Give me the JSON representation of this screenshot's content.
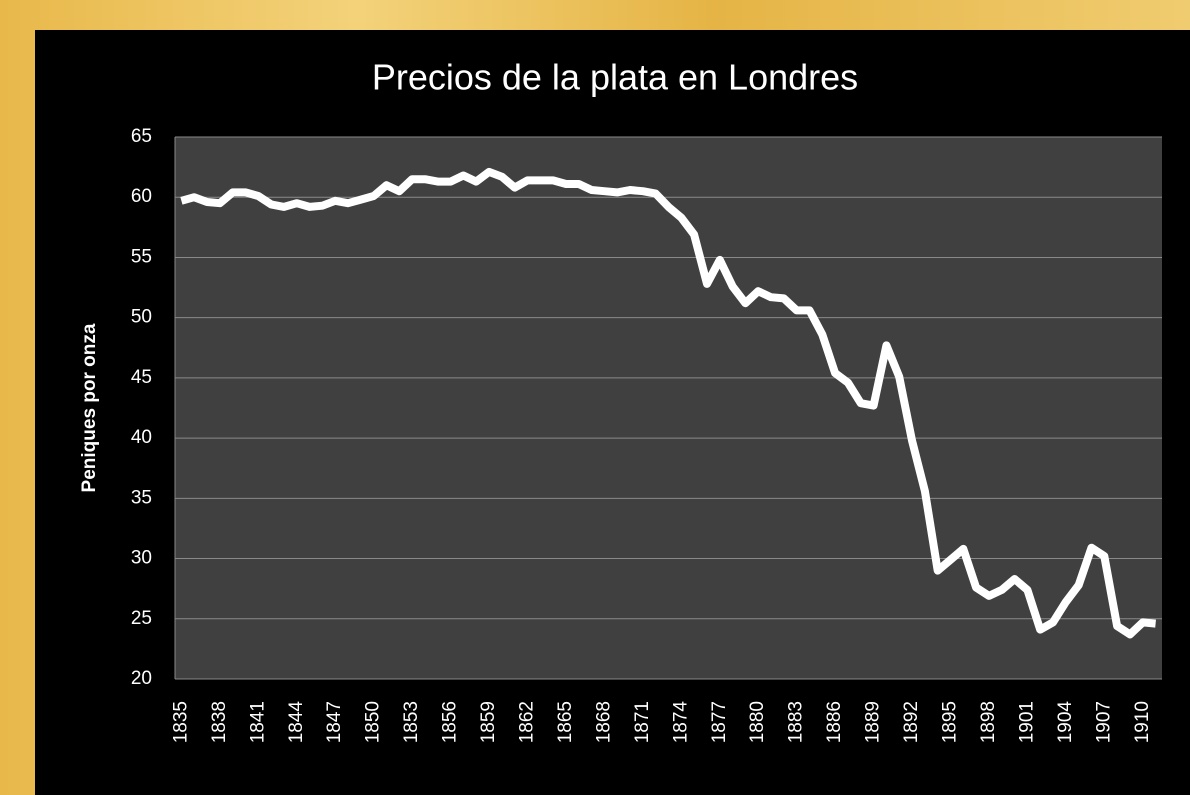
{
  "chart_data": {
    "type": "line",
    "title": "Precios de la plata en Londres",
    "y_label": "Peniques por onza",
    "categories": [
      "1835",
      null,
      null,
      "1838",
      null,
      null,
      "1841",
      null,
      null,
      "1844",
      null,
      null,
      "1847",
      null,
      null,
      "1850",
      null,
      null,
      "1853",
      null,
      null,
      "1856",
      null,
      null,
      "1859",
      null,
      null,
      "1862",
      null,
      null,
      "1865",
      null,
      null,
      "1868",
      null,
      null,
      "1871",
      null,
      null,
      "1874",
      null,
      null,
      "1877",
      null,
      null,
      "1880",
      null,
      null,
      "1883",
      null,
      null,
      "1886",
      null,
      null,
      "1889",
      null,
      null,
      "1892",
      null,
      null,
      "1895",
      null,
      null,
      "1898",
      null,
      null,
      "1901",
      null,
      null,
      "1904",
      null,
      null,
      "1907",
      null,
      null,
      "1910",
      null
    ],
    "values": [
      59.7,
      60.0,
      59.6,
      59.5,
      60.4,
      60.4,
      60.1,
      59.4,
      59.2,
      59.5,
      59.2,
      59.3,
      59.7,
      59.5,
      59.8,
      60.1,
      61.0,
      60.5,
      61.5,
      61.5,
      61.3,
      61.3,
      61.8,
      61.3,
      62.1,
      61.7,
      60.8,
      61.4,
      61.4,
      61.4,
      61.1,
      61.1,
      60.6,
      60.5,
      60.4,
      60.6,
      60.5,
      60.3,
      59.2,
      58.3,
      56.9,
      52.8,
      54.8,
      52.6,
      51.2,
      52.2,
      51.7,
      51.6,
      50.6,
      50.6,
      48.6,
      45.4,
      44.6,
      42.9,
      42.7,
      47.7,
      45.1,
      39.8,
      35.6,
      29.0,
      29.9,
      30.8,
      27.6,
      26.9,
      27.4,
      28.3,
      27.4,
      24.1,
      24.7,
      26.4,
      27.8,
      30.9,
      30.2,
      24.4,
      23.7,
      24.7,
      24.6
    ],
    "color": "#ffffff",
    "ylim": [
      20,
      65
    ],
    "yticks": [
      20,
      25,
      30,
      35,
      40,
      45,
      50,
      55,
      60,
      65
    ],
    "grid": true
  }
}
